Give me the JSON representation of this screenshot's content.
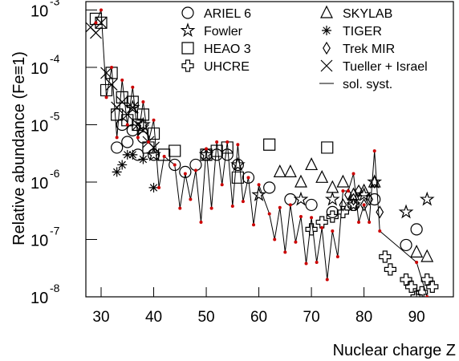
{
  "chart_data": {
    "type": "scatter",
    "y_label": "Relative abundance (Fe≡1)",
    "x_label": "Nuclear charge Z",
    "xlim": [
      27.1,
      97
    ],
    "xticks": [
      30,
      40,
      50,
      60,
      70,
      80,
      90
    ],
    "ylim": [
      1e-08,
      0.0014
    ],
    "log_y": true,
    "yticks": [
      {
        "value": 0.001,
        "label": "10",
        "exponent": "-3"
      },
      {
        "value": 0.0001,
        "label": "10",
        "exponent": "-4"
      },
      {
        "value": 1e-05,
        "label": "10",
        "exponent": "-5"
      },
      {
        "value": 1e-06,
        "label": "10",
        "exponent": "-6"
      },
      {
        "value": 1e-07,
        "label": "10",
        "exponent": "-7"
      },
      {
        "value": 1e-08,
        "label": "10",
        "exponent": "-8"
      }
    ],
    "series": [
      {
        "name": "ARIEL 6",
        "marker": "circle",
        "color": "#000000",
        "x": [
          33,
          34,
          35,
          36,
          37,
          38,
          40,
          44,
          46,
          48,
          50,
          52,
          54,
          56,
          58,
          62,
          66,
          70,
          74,
          78,
          82,
          88,
          90
        ],
        "values": [
          4e-06,
          1e-05,
          5e-06,
          8e-06,
          3e-06,
          6e-06,
          3e-06,
          2e-06,
          1.5e-06,
          2e-06,
          3e-06,
          3e-06,
          3e-06,
          2e-06,
          1.2e-06,
          8e-07,
          5e-07,
          4e-07,
          3e-07,
          4e-07,
          5e-07,
          8e-08,
          1.5e-07
        ]
      },
      {
        "name": "Fowler",
        "marker": "star",
        "color": "#000000",
        "x": [
          36,
          38,
          40,
          50,
          56,
          60,
          68,
          74,
          78,
          80,
          82,
          88,
          92
        ],
        "values": [
          2e-05,
          1e-05,
          3e-06,
          3e-06,
          2e-06,
          6e-07,
          5e-07,
          5e-07,
          4e-07,
          6e-07,
          1e-06,
          3e-07,
          5e-07
        ]
      },
      {
        "name": "HEAO 3",
        "marker": "square",
        "color": "#000000",
        "x": [
          29,
          30,
          31,
          32,
          33,
          34,
          35,
          36,
          37,
          38,
          39,
          40,
          42,
          44,
          50,
          52,
          54,
          56,
          62,
          73
        ],
        "values": [
          0.0007,
          0.0006,
          4e-05,
          8e-05,
          1.5e-05,
          3e-05,
          1.2e-05,
          2.5e-05,
          1e-05,
          1.5e-05,
          4e-06,
          7e-06,
          3e-06,
          3.5e-06,
          3e-06,
          3.5e-06,
          4e-06,
          1.2e-06,
          4.5e-06,
          4e-06
        ]
      },
      {
        "name": "UHCRE",
        "marker": "plus",
        "color": "#000000",
        "x": [
          70,
          72,
          74,
          76,
          78,
          84,
          85,
          88,
          89,
          90,
          91,
          92,
          93
        ],
        "values": [
          1.5e-07,
          2e-07,
          2.5e-07,
          3e-07,
          4e-07,
          5e-08,
          3e-08,
          2e-08,
          1.5e-08,
          1e-08,
          1.2e-08,
          2e-08,
          1.5e-08
        ]
      },
      {
        "name": "SKYLAB",
        "marker": "triangle",
        "color": "#000000",
        "x": [
          64,
          66,
          68,
          70,
          72,
          74,
          76,
          78,
          80,
          82,
          90,
          92
        ],
        "values": [
          1.5e-06,
          1.5e-06,
          1e-06,
          2e-06,
          1.2e-06,
          8e-07,
          1e-06,
          6e-07,
          7e-07,
          1e-06,
          6e-08,
          5e-08
        ]
      },
      {
        "name": "TIGER",
        "marker": "flake",
        "color": "#000000",
        "x": [
          33,
          34,
          35,
          36,
          38,
          40
        ],
        "values": [
          1.5e-06,
          2e-06,
          3e-06,
          3e-06,
          2.5e-06,
          8e-07
        ]
      },
      {
        "name": "Trek MIR",
        "marker": "diamond",
        "color": "#000000",
        "x": [
          76,
          77,
          78,
          79,
          80,
          81,
          82,
          83
        ],
        "values": [
          4e-07,
          6e-07,
          5e-07,
          7e-07,
          4e-07,
          5e-07,
          1e-06,
          3e-07
        ]
      },
      {
        "name": "Tueller + Israel",
        "marker": "cross",
        "color": "#000000",
        "x": [
          28,
          29,
          30,
          31,
          32,
          33,
          34,
          35,
          36,
          37,
          38,
          39,
          40
        ],
        "values": [
          0.0005,
          0.0004,
          0.0006,
          8e-05,
          5e-05,
          2e-05,
          2.5e-05,
          1.5e-05,
          2e-05,
          1e-05,
          8e-06,
          5e-06,
          4e-06
        ]
      },
      {
        "name": "sol. syst.",
        "marker": "line",
        "color": "#000000",
        "point_color": "#cc0000",
        "x": [
          29,
          30,
          31,
          32,
          33,
          34,
          35,
          36,
          37,
          38,
          39,
          40,
          41,
          42,
          44,
          45,
          46,
          47,
          48,
          49,
          50,
          51,
          52,
          53,
          54,
          55,
          56,
          57,
          58,
          59,
          60,
          62,
          63,
          64,
          65,
          66,
          67,
          68,
          69,
          70,
          71,
          72,
          73,
          74,
          75,
          76,
          77,
          78,
          79,
          80,
          81,
          82,
          83,
          90,
          92
        ],
        "values": [
          0.0006,
          0.001,
          3e-05,
          0.0001,
          6e-06,
          6e-05,
          1e-05,
          4.5e-05,
          6e-06,
          2.5e-05,
          5e-06,
          1.2e-05,
          8e-07,
          2.8e-06,
          2e-06,
          3.5e-07,
          1.4e-06,
          5e-07,
          1.6e-06,
          2e-07,
          3.8e-06,
          3.5e-07,
          5e-06,
          9e-07,
          5e-06,
          3.8e-07,
          4.5e-06,
          4.6e-07,
          1.2e-06,
          1.8e-07,
          9e-07,
          2.8e-07,
          1e-07,
          3.6e-07,
          6e-08,
          4e-07,
          9e-08,
          2.5e-07,
          3.8e-08,
          2.4e-07,
          4e-08,
          1.6e-07,
          2e-08,
          1.4e-07,
          5e-08,
          7e-07,
          7e-07,
          1.4e-06,
          2e-07,
          4e-07,
          2e-07,
          3.5e-06,
          1.4e-07,
          4e-08,
          1e-08
        ]
      }
    ]
  }
}
